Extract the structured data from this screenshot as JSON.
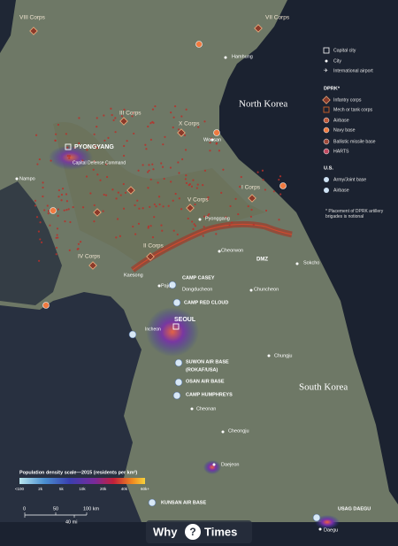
{
  "places": [
    "VIII Corps",
    "VII Corps",
    "Hamhung",
    "III Corps",
    "X Corps",
    "Wonsan",
    "PYONGYANG",
    "Capital Defense Command",
    "Nampo",
    "V Corps",
    "I Corps",
    "Pyonggang",
    "II Corps",
    "IV Corps",
    "Cheorwon",
    "DMZ",
    "Kaesong",
    "Paju",
    "Sokcho",
    "CAMP CASEY",
    "Dongducheon",
    "Chuncheon",
    "CAMP RED CLOUD",
    "SEOUL",
    "Incheon",
    "SUWON AIR BASE",
    "(ROKAF/USA)",
    "OSAN AIR BASE",
    "Chungju",
    "CAMP HUMPHREYS",
    "Cheonan",
    "Cheongju",
    "Daejeon",
    "KUNSAN AIR BASE",
    "USAG DAEGU",
    "Daegu",
    "North Korea",
    "South Korea"
  ],
  "legend": {
    "general": [
      "Capital city",
      "City",
      "International airport"
    ],
    "dprk_title": "DPRK*",
    "dprk": [
      "Infantry corps",
      "Mech or tank corps",
      "Airbase",
      "Navy base",
      "Ballistic missile base",
      "HARTS"
    ],
    "us_title": "U.S.",
    "us": [
      "Army/Joint base",
      "Airbase"
    ],
    "note": "* Placement of DPRK artillery brigades is notional"
  },
  "density_scale": {
    "title": "Population density scale—2015 (residents per km²)",
    "ticks": [
      "<100",
      "2k",
      "5k",
      "10k",
      "20k",
      "40k",
      "60k+"
    ]
  },
  "scale_bar": {
    "km": [
      "0",
      "50",
      "100 km"
    ],
    "mi": "40 mi"
  },
  "watermark": {
    "left": "Why",
    "mid": "?",
    "right": "Times"
  }
}
